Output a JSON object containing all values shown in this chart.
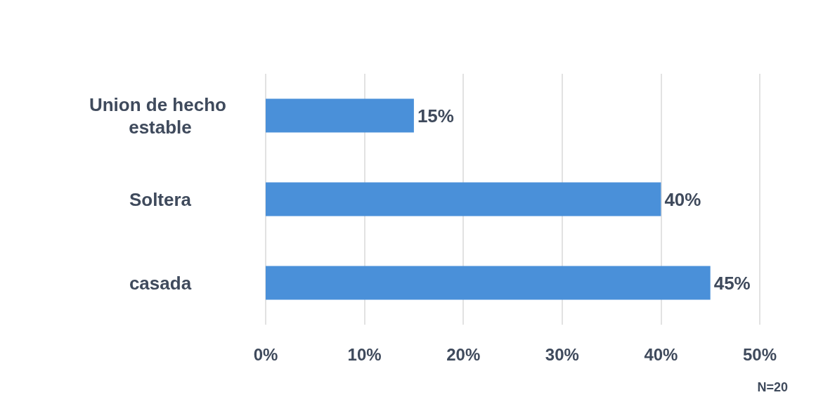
{
  "chart_data": {
    "type": "bar",
    "orientation": "horizontal",
    "categories": [
      "Union de hecho estable",
      "Soltera",
      "casada"
    ],
    "values": [
      15,
      40,
      45
    ],
    "value_labels": [
      "15%",
      "40%",
      "45%"
    ],
    "color": "#4a90d9",
    "xlim": [
      0,
      50
    ],
    "xticks": [
      {
        "value": 0,
        "label": "0%"
      },
      {
        "value": 10,
        "label": "10%"
      },
      {
        "value": 20,
        "label": "20%"
      },
      {
        "value": 30,
        "label": "30%"
      },
      {
        "value": 40,
        "label": "40%"
      },
      {
        "value": 50,
        "label": "50%"
      }
    ],
    "grid": "x",
    "annotations": [
      "N=20"
    ]
  }
}
